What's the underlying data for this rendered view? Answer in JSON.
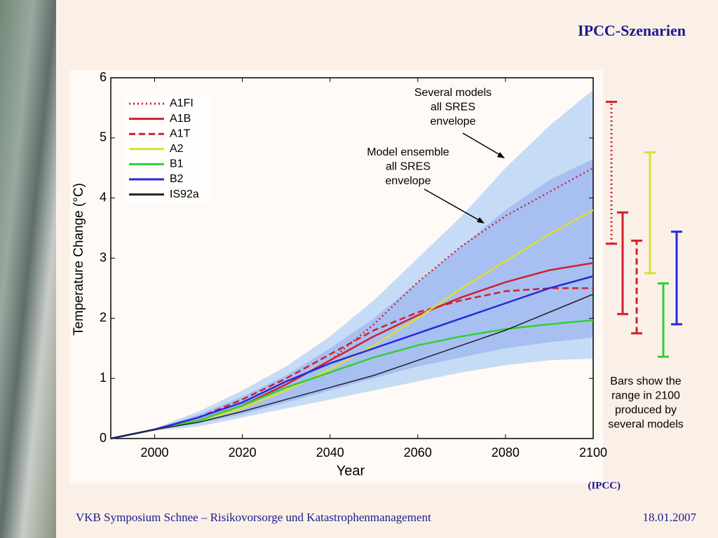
{
  "slide_title": "IPCC-Szenarien",
  "source": "(IPCC)",
  "footer": "VKB Symposium Schnee – Risikovorsorge und Katastrophenmanagement",
  "date": "18.01.2007",
  "chart_data": {
    "type": "line",
    "xlabel": "Year",
    "ylabel": "Temperature Change (°C)",
    "xlim": [
      1990,
      2100
    ],
    "ylim": [
      0,
      6
    ],
    "xticks": [
      2000,
      2020,
      2040,
      2060,
      2080,
      2100
    ],
    "yticks": [
      0,
      1,
      2,
      3,
      4,
      5,
      6
    ],
    "x": [
      1990,
      2000,
      2010,
      2020,
      2030,
      2040,
      2050,
      2060,
      2070,
      2080,
      2090,
      2100
    ],
    "envelopes": [
      {
        "color": "#c6dcf6",
        "upper": [
          0,
          0.17,
          0.45,
          0.8,
          1.2,
          1.7,
          2.3,
          3.0,
          3.7,
          4.5,
          5.2,
          5.8
        ],
        "lower": [
          0,
          0.13,
          0.2,
          0.35,
          0.5,
          0.65,
          0.8,
          0.95,
          1.1,
          1.22,
          1.3,
          1.33
        ]
      },
      {
        "color": "#a8bff2",
        "upper": [
          0,
          0.16,
          0.4,
          0.7,
          1.05,
          1.5,
          2.0,
          2.6,
          3.2,
          3.8,
          4.3,
          4.65
        ],
        "lower": [
          0,
          0.14,
          0.25,
          0.4,
          0.6,
          0.8,
          1.0,
          1.2,
          1.35,
          1.5,
          1.6,
          1.68
        ]
      }
    ],
    "annotations": [
      [
        "Several models",
        "all SRES",
        "envelope"
      ],
      [
        "Model ensemble",
        "all SRES",
        "envelope"
      ],
      [
        "Bars show the",
        "range in 2100",
        "produced by",
        "several models"
      ]
    ],
    "series": [
      {
        "name": "A1FI",
        "color": "#d0202a",
        "dash": "dotted",
        "values": [
          0,
          0.15,
          0.3,
          0.55,
          0.9,
          1.3,
          1.9,
          2.6,
          3.2,
          3.7,
          4.1,
          4.5
        ],
        "range_2100": [
          3.24,
          5.6
        ]
      },
      {
        "name": "A1B",
        "color": "#d0202a",
        "dash": "solid",
        "values": [
          0,
          0.15,
          0.3,
          0.55,
          0.9,
          1.3,
          1.7,
          2.05,
          2.35,
          2.6,
          2.8,
          2.92
        ],
        "range_2100": [
          2.07,
          3.76
        ]
      },
      {
        "name": "A1T",
        "color": "#d0202a",
        "dash": "dashed",
        "values": [
          0,
          0.15,
          0.35,
          0.65,
          1.0,
          1.4,
          1.8,
          2.1,
          2.3,
          2.45,
          2.5,
          2.5
        ],
        "range_2100": [
          1.75,
          3.29
        ]
      },
      {
        "name": "A2",
        "color": "#d8e030",
        "dash": "solid",
        "values": [
          0,
          0.15,
          0.3,
          0.5,
          0.8,
          1.15,
          1.55,
          2.0,
          2.5,
          2.95,
          3.4,
          3.8
        ],
        "range_2100": [
          2.75,
          4.76
        ]
      },
      {
        "name": "B1",
        "color": "#30d030",
        "dash": "solid",
        "values": [
          0,
          0.15,
          0.3,
          0.55,
          0.85,
          1.1,
          1.35,
          1.55,
          1.7,
          1.82,
          1.9,
          1.97
        ],
        "range_2100": [
          1.36,
          2.58
        ]
      },
      {
        "name": "B2",
        "color": "#2828d8",
        "dash": "solid",
        "values": [
          0,
          0.15,
          0.35,
          0.6,
          0.95,
          1.25,
          1.5,
          1.75,
          2.0,
          2.25,
          2.5,
          2.7
        ],
        "range_2100": [
          1.9,
          3.44
        ]
      },
      {
        "name": "IS92a",
        "color": "#222222",
        "dash": "solid",
        "values": [
          0,
          0.15,
          0.27,
          0.45,
          0.65,
          0.85,
          1.05,
          1.3,
          1.55,
          1.8,
          2.1,
          2.4
        ]
      }
    ]
  }
}
